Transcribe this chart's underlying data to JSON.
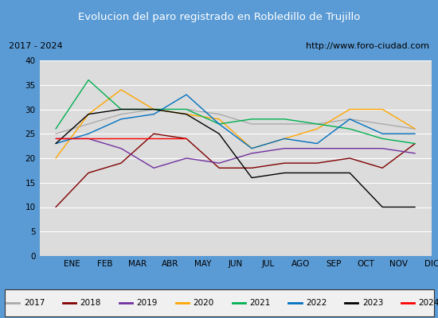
{
  "title": "Evolucion del paro registrado en Robledillo de Trujillo",
  "title_color": "#ffffff",
  "title_bg": "#5b9bd5",
  "subtitle_left": "2017 - 2024",
  "subtitle_right": "http://www.foro-ciudad.com",
  "months": [
    "ENE",
    "FEB",
    "MAR",
    "ABR",
    "MAY",
    "JUN",
    "JUL",
    "AGO",
    "SEP",
    "OCT",
    "NOV",
    "DIC"
  ],
  "ylim": [
    0,
    40
  ],
  "yticks": [
    0,
    5,
    10,
    15,
    20,
    25,
    30,
    35,
    40
  ],
  "series": {
    "2017": {
      "color": "#aaaaaa",
      "data": [
        25,
        27,
        29,
        30,
        30,
        29,
        27,
        27,
        27,
        28,
        27,
        26
      ]
    },
    "2018": {
      "color": "#800000",
      "data": [
        10,
        17,
        19,
        25,
        24,
        18,
        18,
        19,
        19,
        20,
        18,
        23
      ]
    },
    "2019": {
      "color": "#7030a0",
      "data": [
        24,
        24,
        22,
        18,
        20,
        19,
        21,
        22,
        22,
        22,
        22,
        21
      ]
    },
    "2020": {
      "color": "#ffa500",
      "data": [
        20,
        29,
        34,
        30,
        29,
        28,
        22,
        24,
        26,
        30,
        30,
        26
      ]
    },
    "2021": {
      "color": "#00b050",
      "data": [
        26,
        36,
        30,
        30,
        30,
        27,
        28,
        28,
        27,
        26,
        24,
        23
      ]
    },
    "2022": {
      "color": "#0070c0",
      "data": [
        23,
        25,
        28,
        29,
        33,
        27,
        22,
        24,
        23,
        28,
        25,
        25
      ]
    },
    "2023": {
      "color": "#000000",
      "data": [
        23,
        29,
        30,
        30,
        29,
        25,
        16,
        17,
        17,
        17,
        10,
        10
      ]
    },
    "2024": {
      "color": "#ff0000",
      "data": [
        24,
        24,
        24,
        24,
        24,
        null,
        null,
        null,
        null,
        null,
        null,
        null
      ]
    }
  },
  "plot_bg": "#dcdcdc",
  "grid_color": "#ffffff",
  "border_color": "#5b9bd5",
  "fig_bg": "#5b9bd5",
  "subtitle_bg": "#f5f5f5",
  "legend_bg": "#f0f0f0"
}
